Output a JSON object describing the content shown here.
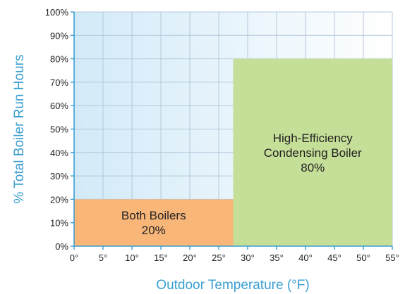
{
  "chart_data": {
    "type": "area",
    "title": "",
    "xlabel": "Outdoor Temperature (°F)",
    "ylabel": "% Total Boiler Run Hours",
    "xlim": [
      0,
      55
    ],
    "ylim": [
      0,
      100
    ],
    "x_ticks": [
      0,
      5,
      10,
      15,
      20,
      25,
      30,
      35,
      40,
      45,
      50,
      55
    ],
    "x_tick_labels": [
      "0°",
      "5°",
      "10°",
      "15°",
      "20°",
      "25°",
      "30°",
      "35°",
      "40°",
      "45°",
      "50°",
      "55°"
    ],
    "y_ticks": [
      0,
      10,
      20,
      30,
      40,
      50,
      60,
      70,
      80,
      90,
      100
    ],
    "y_tick_labels": [
      "0%",
      "10%",
      "20%",
      "30%",
      "40%",
      "50%",
      "60%",
      "70%",
      "80%",
      "90%",
      "100%"
    ],
    "grid": true,
    "regions": [
      {
        "label_lines": [
          "Both Boilers",
          "20%"
        ],
        "x_start": 0,
        "x_end": 27.5,
        "value": 20,
        "color": "#f8b679"
      },
      {
        "label_lines": [
          "High-Efficiency",
          "Condensing Boiler",
          "80%"
        ],
        "x_start": 27.5,
        "x_end": 55,
        "value": 80,
        "color": "#c5de98"
      }
    ],
    "colors": {
      "axis": "#3a9fd0",
      "grid": "#b4c8dc",
      "background_left": "#d2eaf8",
      "background_right": "#ffffff"
    }
  }
}
